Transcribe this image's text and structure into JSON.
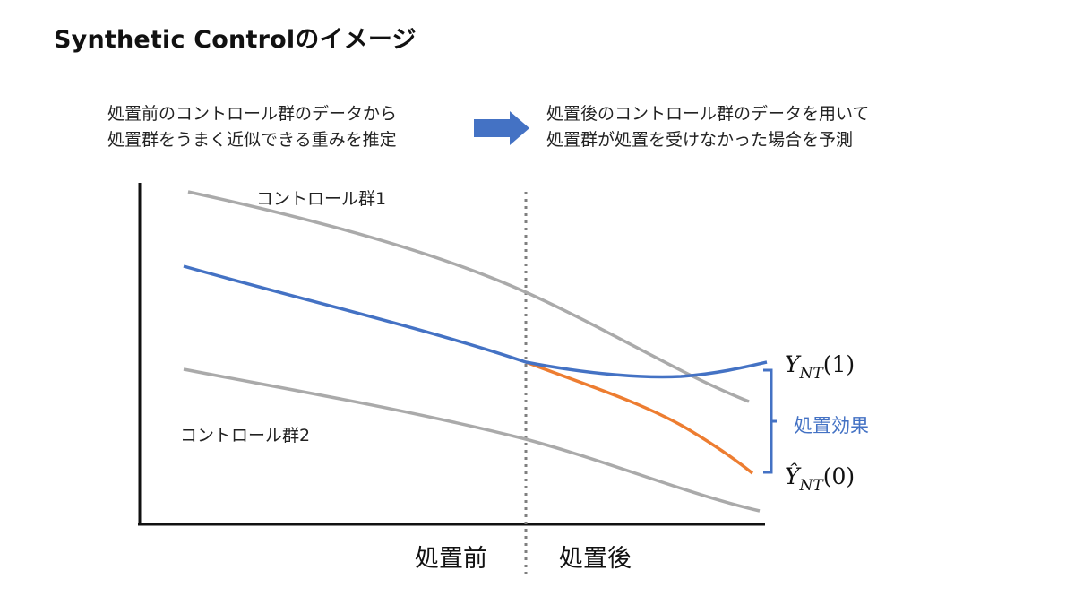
{
  "title": "Synthetic Controlのイメージ",
  "description": {
    "left": [
      "処置前のコントロール群のデータから",
      "処置群をうまく近似できる重みを推定"
    ],
    "right": [
      "処置後のコントロール群のデータを用いて",
      "処置群が処置を受けなかった場合を予測"
    ]
  },
  "diagram": {
    "control1_label": "コントロール群1",
    "control2_label": "コントロール群2",
    "before_label": "処置前",
    "after_label": "処置後",
    "effect_label": "処置効果",
    "y1_label": {
      "base": "Y",
      "sub": "NT",
      "arg": "(1)"
    },
    "y0_label": {
      "base": "Ŷ",
      "sub": "NT",
      "arg": "(0)"
    }
  },
  "colors": {
    "control": "#aaaaaa",
    "synthetic": "#4472c4",
    "counterfactual": "#ed7d31",
    "axis": "#111111",
    "divider": "#7f7f7f",
    "arrow": "#4472c4"
  }
}
